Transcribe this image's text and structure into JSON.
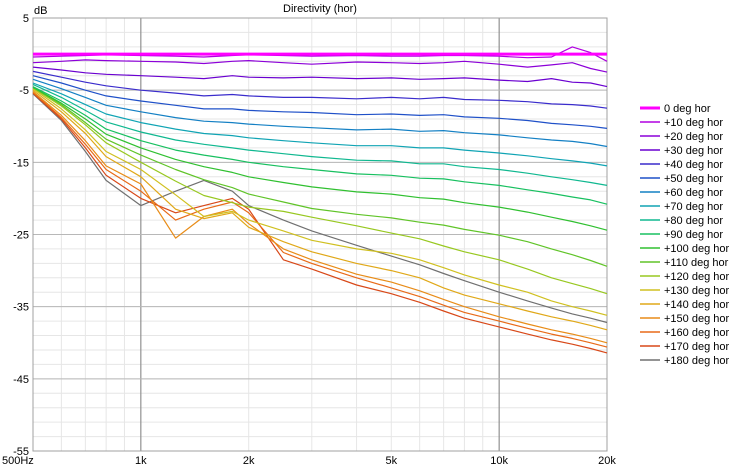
{
  "chart_data": {
    "type": "line",
    "title": "Directivity (hor)",
    "y_unit_label": "dB",
    "xscale": "log",
    "xlim": [
      500,
      20000
    ],
    "ylim": [
      -55,
      5
    ],
    "x_tick_values": [
      500,
      1000,
      2000,
      5000,
      10000,
      20000
    ],
    "x_tick_labels": [
      "500Hz",
      "1k",
      "2k",
      "5k",
      "10k",
      "20k"
    ],
    "y_tick_values": [
      5,
      -5,
      -15,
      -25,
      -35,
      -45,
      -55
    ],
    "y_tick_labels": [
      "5",
      "-5",
      "-15",
      "-25",
      "-35",
      "-45",
      "-55"
    ],
    "grid": true,
    "legend_position": "right",
    "x": [
      500,
      600,
      700,
      800,
      1000,
      1250,
      1500,
      1800,
      2000,
      2500,
      3000,
      4000,
      5000,
      6000,
      7000,
      8000,
      10000,
      12000,
      14000,
      16000,
      18000,
      20000
    ],
    "series": [
      {
        "name": "0 deg hor",
        "color": "#ff00ff",
        "values": [
          0,
          0,
          0,
          0,
          0,
          0,
          0,
          0,
          0,
          0,
          0,
          0,
          0,
          0,
          0,
          0,
          0,
          0,
          0,
          0,
          0,
          0
        ]
      },
      {
        "name": "+10 deg hor",
        "color": "#b000e0",
        "values": [
          -0.4,
          -0.3,
          -0.2,
          -0.1,
          -0.2,
          -0.3,
          -0.4,
          -0.2,
          -0.1,
          -0.2,
          -0.3,
          -0.2,
          -0.3,
          -0.3,
          -0.2,
          -0.2,
          -0.3,
          -0.5,
          -0.4,
          1.0,
          0.2,
          -1.0
        ]
      },
      {
        "name": "+20 deg hor",
        "color": "#8c00d8",
        "values": [
          -1.2,
          -1.0,
          -0.8,
          -0.9,
          -1.0,
          -1.1,
          -1.3,
          -1.0,
          -0.9,
          -1.2,
          -1.4,
          -1.1,
          -1.2,
          -1.3,
          -1.2,
          -1.0,
          -1.4,
          -1.8,
          -1.5,
          -1.2,
          -2.0,
          -2.5
        ]
      },
      {
        "name": "+30 deg hor",
        "color": "#6a00d0",
        "values": [
          -1.8,
          -2.2,
          -2.6,
          -2.8,
          -3.0,
          -3.2,
          -3.4,
          -3.0,
          -3.2,
          -3.3,
          -3.2,
          -3.4,
          -3.3,
          -3.5,
          -3.4,
          -3.3,
          -3.6,
          -3.8,
          -3.4,
          -3.9,
          -4.0,
          -4.5
        ]
      },
      {
        "name": "+40 deg hor",
        "color": "#3a2ccc",
        "values": [
          -2.4,
          -3.2,
          -3.9,
          -4.4,
          -5.0,
          -5.4,
          -5.8,
          -5.6,
          -5.8,
          -6.0,
          -6.0,
          -6.2,
          -6.0,
          -6.2,
          -6.0,
          -6.3,
          -6.4,
          -6.6,
          -6.9,
          -7.0,
          -7.2,
          -7.5
        ]
      },
      {
        "name": "+50 deg hor",
        "color": "#1f50c8",
        "values": [
          -3.0,
          -4.0,
          -5.0,
          -5.8,
          -6.5,
          -7.1,
          -7.6,
          -7.6,
          -7.8,
          -8.0,
          -8.1,
          -8.4,
          -8.3,
          -8.5,
          -8.4,
          -8.7,
          -8.9,
          -9.2,
          -9.6,
          -9.8,
          -10.0,
          -10.3
        ]
      },
      {
        "name": "+60 deg hor",
        "color": "#1480c4",
        "values": [
          -3.5,
          -4.8,
          -6.0,
          -7.1,
          -8.0,
          -8.8,
          -9.3,
          -9.5,
          -9.7,
          -10.0,
          -10.2,
          -10.5,
          -10.4,
          -10.7,
          -10.6,
          -10.9,
          -11.2,
          -11.6,
          -11.9,
          -12.1,
          -12.4,
          -12.8
        ]
      },
      {
        "name": "+70 deg hor",
        "color": "#10a4b4",
        "values": [
          -4.0,
          -5.5,
          -7.0,
          -8.3,
          -9.5,
          -10.4,
          -11.0,
          -11.3,
          -11.6,
          -12.0,
          -12.3,
          -12.7,
          -12.7,
          -13.0,
          -13.0,
          -13.3,
          -13.7,
          -14.1,
          -14.5,
          -14.8,
          -15.1,
          -15.5
        ]
      },
      {
        "name": "+80 deg hor",
        "color": "#10b890",
        "values": [
          -4.2,
          -6.0,
          -7.8,
          -9.4,
          -10.8,
          -11.9,
          -12.5,
          -13.0,
          -13.3,
          -13.8,
          -14.2,
          -14.7,
          -14.8,
          -15.2,
          -15.2,
          -15.6,
          -16.0,
          -16.5,
          -17.0,
          -17.4,
          -17.8,
          -18.2
        ]
      },
      {
        "name": "+90 deg hor",
        "color": "#18c060",
        "values": [
          -4.5,
          -6.5,
          -8.5,
          -10.4,
          -12.0,
          -13.3,
          -14.0,
          -14.6,
          -15.0,
          -15.6,
          -16.0,
          -16.6,
          -16.8,
          -17.2,
          -17.3,
          -17.7,
          -18.2,
          -18.8,
          -19.3,
          -19.8,
          -20.2,
          -20.8
        ]
      },
      {
        "name": "+100 deg hor",
        "color": "#30c030",
        "values": [
          -4.6,
          -6.8,
          -9.0,
          -11.1,
          -13.0,
          -14.6,
          -15.6,
          -16.4,
          -17.0,
          -17.8,
          -18.4,
          -19.1,
          -19.4,
          -19.9,
          -20.1,
          -20.6,
          -21.2,
          -21.9,
          -22.6,
          -23.2,
          -23.8,
          -24.4
        ]
      },
      {
        "name": "+110 deg hor",
        "color": "#60c428",
        "values": [
          -4.6,
          -7.0,
          -9.5,
          -11.8,
          -14.0,
          -16.0,
          -17.4,
          -18.5,
          -19.4,
          -20.5,
          -21.4,
          -22.2,
          -22.7,
          -23.3,
          -23.7,
          -24.3,
          -25.1,
          -26.0,
          -27.0,
          -27.8,
          -28.6,
          -29.4
        ]
      },
      {
        "name": "+120 deg hor",
        "color": "#98c820",
        "values": [
          -4.7,
          -7.2,
          -9.8,
          -12.3,
          -15.0,
          -17.6,
          -19.6,
          -20.6,
          -21.2,
          -21.8,
          -22.6,
          -23.8,
          -24.8,
          -25.6,
          -26.6,
          -27.4,
          -28.5,
          -29.8,
          -31.0,
          -31.8,
          -32.5,
          -33.2
        ]
      },
      {
        "name": "+130 deg hor",
        "color": "#d0c020",
        "values": [
          -4.8,
          -7.6,
          -10.5,
          -13.5,
          -16.0,
          -19.5,
          -22.5,
          -21.8,
          -23.0,
          -24.5,
          -25.8,
          -27.0,
          -27.6,
          -28.5,
          -29.6,
          -30.6,
          -32.0,
          -33.0,
          -34.2,
          -35.0,
          -35.6,
          -36.2
        ]
      },
      {
        "name": "+140 deg hor",
        "color": "#e0a818",
        "values": [
          -5.0,
          -8.0,
          -11.0,
          -14.2,
          -17.0,
          -21.5,
          -22.8,
          -22.0,
          -24.0,
          -26.0,
          -27.4,
          -29.0,
          -30.0,
          -31.0,
          -32.4,
          -33.4,
          -34.6,
          -35.6,
          -36.4,
          -37.0,
          -37.6,
          -38.2
        ]
      },
      {
        "name": "+150 deg hor",
        "color": "#e88c18",
        "values": [
          -5.2,
          -8.5,
          -12.0,
          -15.5,
          -18.0,
          -25.5,
          -22.5,
          -21.5,
          -23.5,
          -27.0,
          -28.5,
          -30.5,
          -31.6,
          -32.8,
          -34.0,
          -35.0,
          -36.4,
          -37.4,
          -38.2,
          -38.8,
          -39.4,
          -40.0
        ]
      },
      {
        "name": "+160 deg hor",
        "color": "#e86a18",
        "values": [
          -5.3,
          -8.8,
          -12.5,
          -16.0,
          -19.0,
          -23.0,
          -21.5,
          -20.5,
          -22.0,
          -27.5,
          -29.0,
          -31.0,
          -32.4,
          -33.6,
          -34.8,
          -35.8,
          -37.0,
          -38.0,
          -38.8,
          -39.4,
          -40.0,
          -40.6
        ]
      },
      {
        "name": "+170 deg hor",
        "color": "#d84818",
        "values": [
          -5.4,
          -9.0,
          -13.0,
          -16.8,
          -20.0,
          -22.0,
          -21.0,
          -20.0,
          -21.5,
          -28.5,
          -29.8,
          -32.0,
          -33.2,
          -34.4,
          -35.6,
          -36.6,
          -37.8,
          -38.8,
          -39.6,
          -40.2,
          -40.8,
          -41.4
        ]
      },
      {
        "name": "+180 deg hor",
        "color": "#707070",
        "values": [
          -5.5,
          -9.2,
          -13.5,
          -17.5,
          -21.0,
          -19.0,
          -17.5,
          -19.0,
          -21.0,
          -23.0,
          -24.5,
          -26.5,
          -28.0,
          -29.2,
          -30.4,
          -31.4,
          -33.0,
          -34.2,
          -35.2,
          -36.0,
          -36.6,
          -37.2
        ]
      }
    ]
  }
}
